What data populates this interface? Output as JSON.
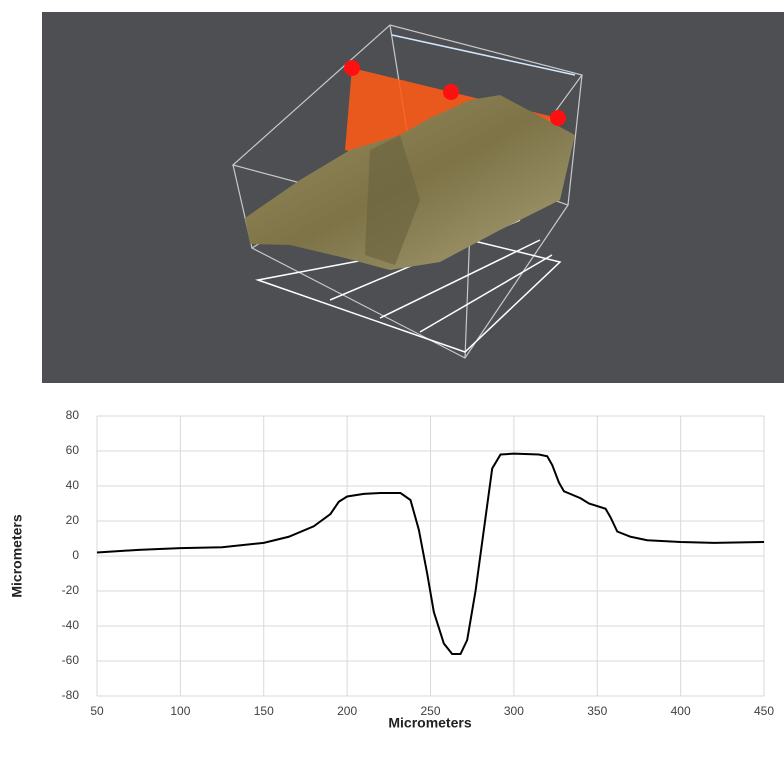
{
  "chart_data": {
    "type": "line",
    "x_label": "Micrometers",
    "y_label": "Micrometers",
    "x": [
      50,
      75,
      100,
      125,
      150,
      165,
      180,
      190,
      195,
      200,
      210,
      220,
      232,
      238,
      243,
      248,
      252,
      258,
      263,
      268,
      272,
      277,
      282,
      287,
      292,
      300,
      315,
      320,
      323,
      327,
      330,
      340,
      345,
      355,
      358,
      362,
      370,
      380,
      400,
      420,
      450
    ],
    "series": [
      {
        "color": "#000000",
        "values": [
          2,
          3.5,
          4.5,
          5,
          7.5,
          11,
          17,
          24,
          31,
          34,
          35.5,
          36,
          36,
          32,
          15,
          -10,
          -32,
          -50,
          -56,
          -56,
          -48,
          -20,
          15,
          50,
          58,
          58.5,
          58,
          57,
          52,
          42,
          37,
          33,
          30,
          27,
          22,
          14,
          11,
          9,
          8,
          7.5,
          8
        ]
      }
    ],
    "xlim": [
      50,
      450
    ],
    "xticks": [
      50,
      100,
      150,
      200,
      250,
      300,
      350,
      400,
      450
    ],
    "ylim": [
      -80,
      80
    ],
    "yticks": [
      -80,
      -60,
      -40,
      -20,
      0,
      20,
      40,
      60,
      80
    ],
    "grid": true
  }
}
